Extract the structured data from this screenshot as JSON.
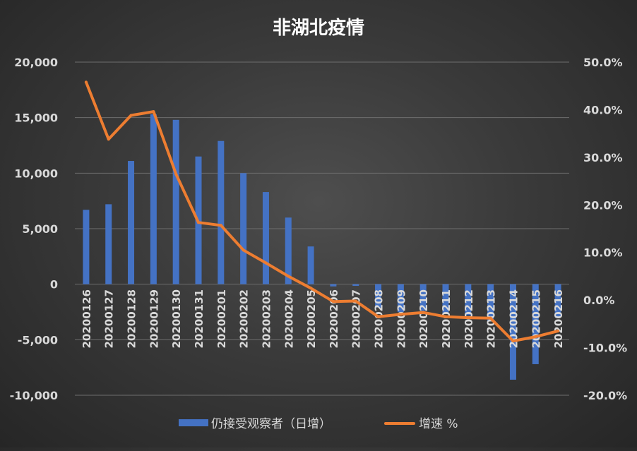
{
  "chart_data": {
    "type": "bar+line",
    "title": "非湖北疫情",
    "categories": [
      "20200126",
      "20200127",
      "20200128",
      "20200129",
      "20200130",
      "20200131",
      "20200201",
      "20200202",
      "20200203",
      "20200204",
      "20200205",
      "20200206",
      "20200207",
      "20200208",
      "20200209",
      "20200210",
      "20200211",
      "20200212",
      "20200213",
      "20200214",
      "20200215",
      "20200216"
    ],
    "series": [
      {
        "name": "仍接受观察者（日增）",
        "type": "bar",
        "axis": "left",
        "color": "#4472C4",
        "values": [
          6700,
          7200,
          11100,
          15300,
          14800,
          11500,
          12900,
          10000,
          8300,
          6000,
          3400,
          -200,
          -150,
          -2100,
          -2500,
          -2400,
          -2600,
          -2800,
          -3300,
          -8600,
          -7200,
          -3000
        ]
      },
      {
        "name": "增速 %",
        "type": "line",
        "axis": "right",
        "color": "#ED7D31",
        "values": [
          45.8,
          33.8,
          38.8,
          39.6,
          26.5,
          16.3,
          15.7,
          10.5,
          7.8,
          5.0,
          2.5,
          -0.3,
          -0.2,
          -3.5,
          -3.0,
          -2.6,
          -3.5,
          -3.7,
          -3.8,
          -8.6,
          -7.7,
          -6.5
        ]
      }
    ],
    "left_axis": {
      "min": -10000,
      "max": 20000,
      "step": 5000,
      "tick_labels": [
        "-10,000",
        "-5,000",
        "0",
        "5,000",
        "10,000",
        "15,000",
        "20,000"
      ]
    },
    "right_axis": {
      "min": -20,
      "max": 50,
      "step": 10,
      "tick_labels": [
        "-20.0%",
        "-10.0%",
        "0.0%",
        "10.0%",
        "20.0%",
        "30.0%",
        "40.0%",
        "50.0%"
      ]
    },
    "grid": true,
    "legend_position": "bottom"
  }
}
